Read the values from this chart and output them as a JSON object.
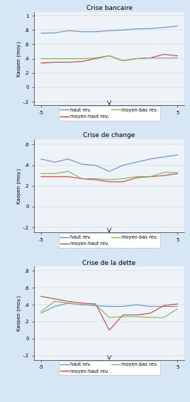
{
  "background_color": "#d6e6f5",
  "panel_bg": "#eef3f8",
  "x": [
    -5,
    -4,
    -3,
    -2,
    -1,
    0,
    1,
    2,
    3,
    4,
    5
  ],
  "panels": [
    {
      "title": "Crise bancaire",
      "ylim": [
        -0.25,
        1.05
      ],
      "yticks": [
        -0.2,
        0.0,
        0.2,
        0.4,
        0.6,
        0.8,
        1.0
      ],
      "ytick_labels": [
        "-.2",
        "0",
        ".2",
        ".4",
        ".6",
        ".8",
        "1"
      ],
      "series": [
        {
          "label": "haut rev.",
          "color": "#5b8fd4",
          "data": [
            0.755,
            0.76,
            0.79,
            0.775,
            0.775,
            0.79,
            0.8,
            0.815,
            0.82,
            0.835,
            0.855
          ]
        },
        {
          "label": "moyen-haut rev.",
          "color": "#c94040",
          "data": [
            0.34,
            0.35,
            0.35,
            0.36,
            0.4,
            0.44,
            0.37,
            0.4,
            0.41,
            0.46,
            0.44
          ]
        },
        {
          "label": "moyen-bas rev.",
          "color": "#8aad5a",
          "data": [
            0.4,
            0.4,
            0.4,
            0.4,
            0.41,
            0.44,
            0.37,
            0.4,
            0.41,
            0.41,
            0.41
          ]
        }
      ]
    },
    {
      "title": "Crise de change",
      "ylim": [
        -0.25,
        0.65
      ],
      "yticks": [
        -0.2,
        0.0,
        0.2,
        0.4,
        0.6
      ],
      "ytick_labels": [
        "-.2",
        "0",
        ".2",
        ".4",
        ".6"
      ],
      "series": [
        {
          "label": "haut rev.",
          "color": "#5b8fd4",
          "data": [
            0.46,
            0.43,
            0.46,
            0.41,
            0.4,
            0.34,
            0.4,
            0.43,
            0.46,
            0.48,
            0.5
          ]
        },
        {
          "label": "moyen-haut rev.",
          "color": "#c94040",
          "data": [
            0.29,
            0.29,
            0.29,
            0.27,
            0.26,
            0.24,
            0.24,
            0.28,
            0.29,
            0.3,
            0.32
          ]
        },
        {
          "label": "moyen-bas rev.",
          "color": "#8aad5a",
          "data": [
            0.32,
            0.32,
            0.34,
            0.27,
            0.27,
            0.26,
            0.27,
            0.29,
            0.29,
            0.33,
            0.33
          ]
        }
      ]
    },
    {
      "title": "Crise de la dette",
      "ylim": [
        -0.25,
        0.85
      ],
      "yticks": [
        -0.2,
        0.0,
        0.2,
        0.4,
        0.6,
        0.8
      ],
      "ytick_labels": [
        "-.2",
        "0",
        ".2",
        ".4",
        ".6",
        ".8"
      ],
      "series": [
        {
          "label": "haut rev.",
          "color": "#5b8fd4",
          "data": [
            0.3,
            0.38,
            0.42,
            0.4,
            0.39,
            0.38,
            0.38,
            0.4,
            0.38,
            0.38,
            0.38
          ]
        },
        {
          "label": "moyen-haut rev.",
          "color": "#c94040",
          "data": [
            0.5,
            0.47,
            0.44,
            0.42,
            0.41,
            0.1,
            0.28,
            0.28,
            0.3,
            0.39,
            0.41
          ]
        },
        {
          "label": "moyen-bas rev.",
          "color": "#8aad5a",
          "data": [
            0.32,
            0.44,
            0.42,
            0.4,
            0.4,
            0.25,
            0.26,
            0.26,
            0.25,
            0.25,
            0.35
          ]
        }
      ]
    }
  ],
  "ylabel": "Kaopen (moy.)",
  "linewidth": 0.8
}
